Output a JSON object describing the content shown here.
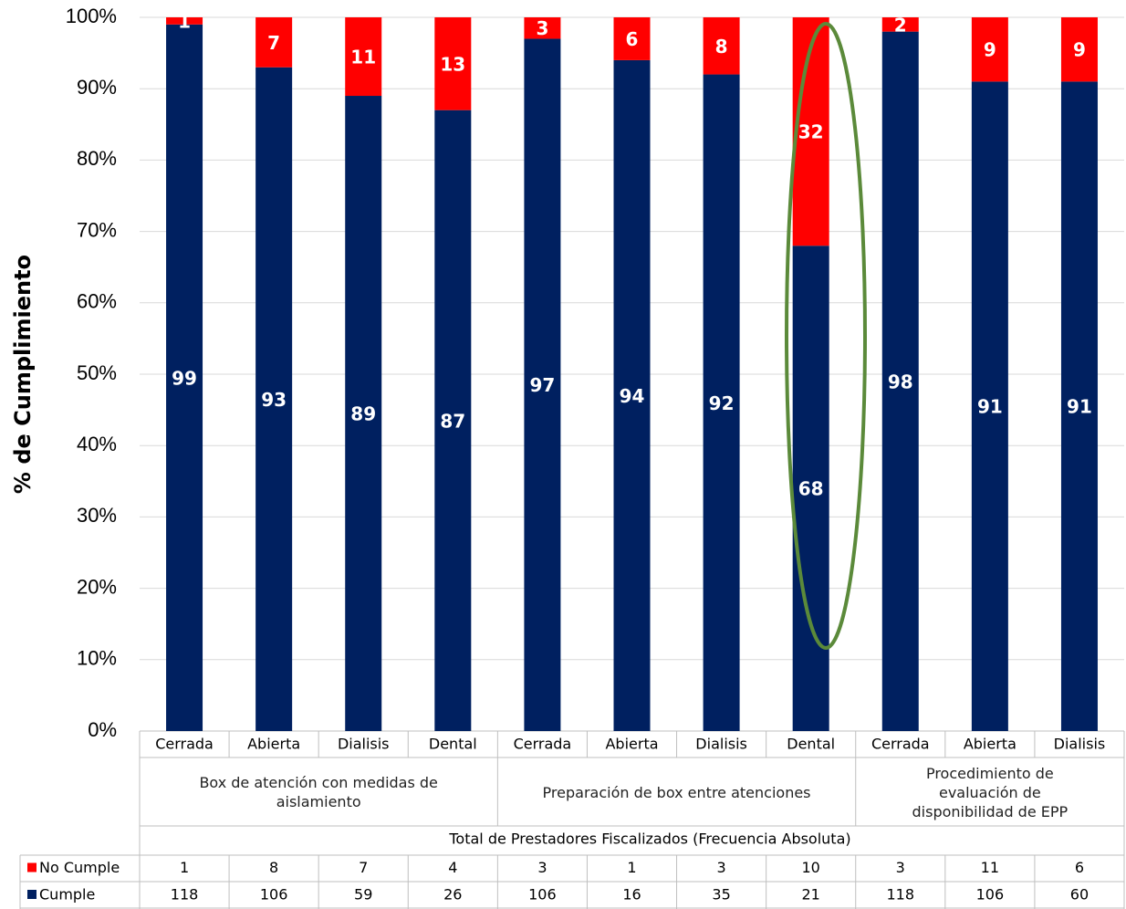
{
  "chart_data": {
    "type": "stacked_bar_100",
    "y_label": "% de Cumplimiento",
    "ylim": [
      0,
      100
    ],
    "yticks": [
      {
        "value": 0,
        "label": "0%"
      },
      {
        "value": 10,
        "label": "10%"
      },
      {
        "value": 20,
        "label": "20%"
      },
      {
        "value": 30,
        "label": "30%"
      },
      {
        "value": 40,
        "label": "40%"
      },
      {
        "value": 50,
        "label": "50%"
      },
      {
        "value": 60,
        "label": "60%"
      },
      {
        "value": 70,
        "label": "70%"
      },
      {
        "value": 80,
        "label": "80%"
      },
      {
        "value": 90,
        "label": "90%"
      },
      {
        "value": 100,
        "label": "100%"
      }
    ],
    "grid": true,
    "groups": [
      {
        "label": "Box de atención con medidas de aislamiento",
        "categories": [
          "Cerrada",
          "Abierta",
          "Dialisis",
          "Dental"
        ]
      },
      {
        "label": "Preparación de box entre atenciones",
        "categories": [
          "Cerrada",
          "Abierta",
          "Dialisis",
          "Dental"
        ]
      },
      {
        "label": "Procedimiento de evaluación de disponibilidad de EPP",
        "categories": [
          "Cerrada",
          "Abierta",
          "Dialisis"
        ]
      }
    ],
    "table_title": "Total de Prestadores Fiscalizados (Frecuencia Absoluta)",
    "series": [
      {
        "name": "Cumple",
        "color": "#002060",
        "values": [
          99,
          93,
          89,
          87,
          97,
          94,
          92,
          68,
          98,
          91,
          91
        ],
        "counts": [
          118,
          106,
          59,
          26,
          106,
          16,
          35,
          21,
          118,
          106,
          60
        ]
      },
      {
        "name": "No Cumple",
        "color": "#ff0000",
        "values": [
          1,
          7,
          11,
          13,
          3,
          6,
          8,
          32,
          2,
          9,
          9
        ],
        "counts": [
          1,
          8,
          7,
          4,
          3,
          1,
          3,
          10,
          3,
          11,
          6
        ]
      }
    ]
  }
}
